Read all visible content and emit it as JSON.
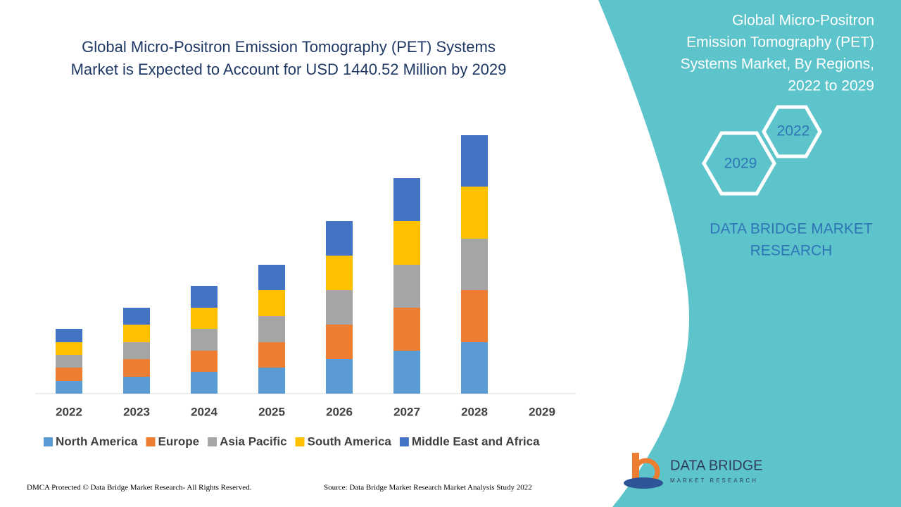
{
  "chart_data": {
    "type": "stacked-bar",
    "title": [
      "Global Micro-Positron Emission Tomography (PET) Systems",
      "Market is Expected to Account for USD 1440.52 Million by 2029"
    ],
    "categories": [
      "2022",
      "2023",
      "2024",
      "2025",
      "2026",
      "2027",
      "2028",
      "2029"
    ],
    "series": [
      {
        "name": "North America",
        "color": "#5b9bd5",
        "values": [
          18,
          24,
          31,
          37,
          49,
          61,
          73,
          null
        ]
      },
      {
        "name": "Europe",
        "color": "#ed7d31",
        "values": [
          19,
          25,
          30,
          36,
          49,
          61,
          74,
          null
        ]
      },
      {
        "name": "Asia Pacific",
        "color": "#a5a5a5",
        "values": [
          18,
          24,
          31,
          37,
          49,
          61,
          73,
          null
        ]
      },
      {
        "name": "South America",
        "color": "#ffc000",
        "values": [
          18,
          25,
          30,
          37,
          49,
          62,
          74,
          null
        ]
      },
      {
        "name": "Middle East and Africa",
        "color": "#4472c4",
        "values": [
          19,
          24,
          31,
          36,
          49,
          61,
          73,
          null
        ]
      }
    ],
    "ylim": [
      0,
      400
    ]
  },
  "panel": {
    "title": [
      "Global Micro-Positron",
      "Emission Tomography (PET)",
      "Systems Market, By Regions,",
      "2022 to 2029"
    ],
    "hexagons": [
      "2022",
      "2029"
    ],
    "brand": [
      "DATA BRIDGE MARKET",
      "RESEARCH"
    ]
  },
  "logo": {
    "name": "DATA BRIDGE",
    "tagline": "MARKET RESEARCH"
  },
  "footer": {
    "rights": "DMCA Protected © Data Bridge Market Research- All Rights Reserved.",
    "source": "Source: Data Bridge Market Research Market Analysis Study 2022"
  }
}
